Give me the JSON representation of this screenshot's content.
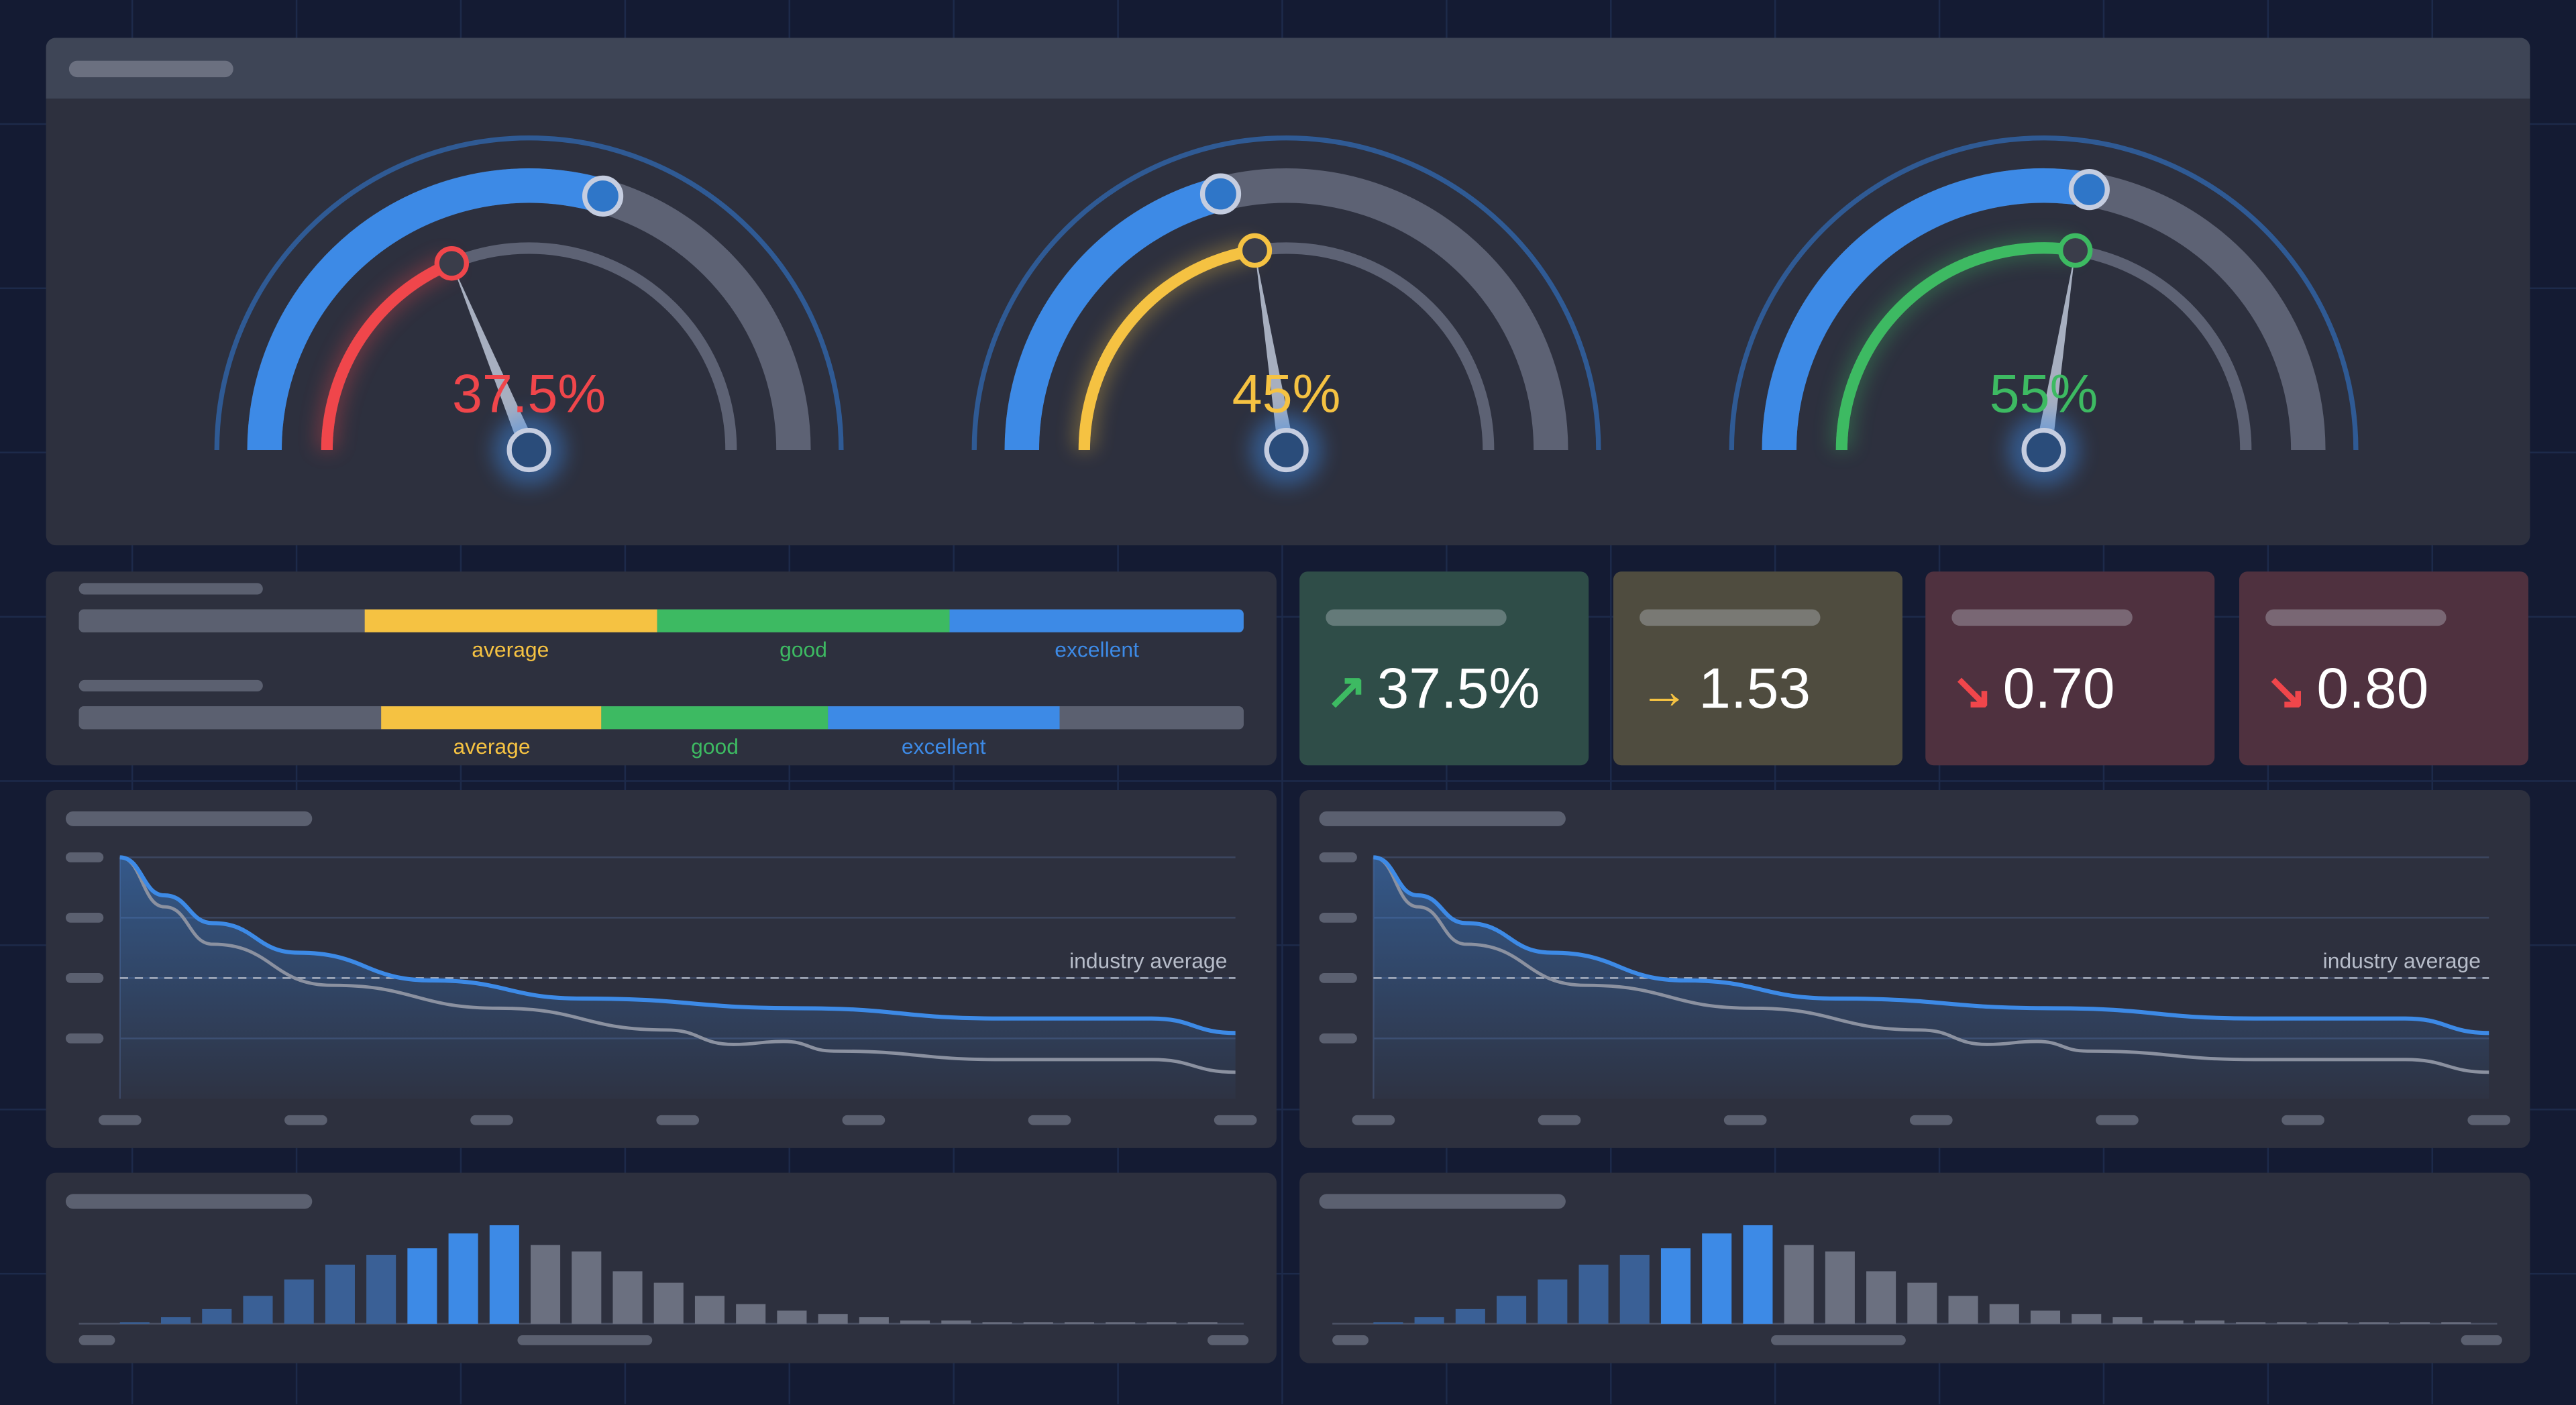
{
  "colors": {
    "blue": "#3d8ae6",
    "red": "#f0464b",
    "yellow": "#f5c242",
    "green": "#3dba62",
    "grey": "#5d6274",
    "ring": "#2f5a94"
  },
  "gauges": [
    {
      "value_label": "37.5%",
      "value": 0.375,
      "target": 0.59,
      "color": "#f0464b"
    },
    {
      "value_label": "45%",
      "value": 0.45,
      "target": 0.42,
      "color": "#f5c242"
    },
    {
      "value_label": "55%",
      "value": 0.55,
      "target": 0.555,
      "color": "#3dba62"
    }
  ],
  "rating_bars": [
    {
      "segments": [
        {
          "label": "",
          "from": 0,
          "to": 0.245,
          "color": "#5b6070"
        },
        {
          "label": "average",
          "from": 0.245,
          "to": 0.496,
          "color": "#f5c242"
        },
        {
          "label": "good",
          "from": 0.496,
          "to": 0.748,
          "color": "#3dba62"
        },
        {
          "label": "excellent",
          "from": 0.748,
          "to": 1,
          "color": "#3d8ae6"
        }
      ]
    },
    {
      "segments": [
        {
          "label": "",
          "from": 0,
          "to": 0.26,
          "color": "#5b6070"
        },
        {
          "label": "average",
          "from": 0.26,
          "to": 0.449,
          "color": "#f5c242"
        },
        {
          "label": "good",
          "from": 0.449,
          "to": 0.643,
          "color": "#3dba62"
        },
        {
          "label": "excellent",
          "from": 0.643,
          "to": 0.842,
          "color": "#3d8ae6"
        },
        {
          "label": "",
          "from": 0.842,
          "to": 1,
          "color": "#5b6070"
        }
      ]
    }
  ],
  "kpis": [
    {
      "arrow": "↗",
      "trend": "up",
      "value": "37.5%",
      "bg": "#2f4d48",
      "arrow_color": "#3dba62"
    },
    {
      "arrow": "→",
      "trend": "flat",
      "value": "1.53",
      "bg": "#4f4c3f",
      "arrow_color": "#f5c242"
    },
    {
      "arrow": "↘",
      "trend": "down",
      "value": "0.70",
      "bg": "#4f313f",
      "arrow_color": "#f0464b"
    },
    {
      "arrow": "↘",
      "trend": "down",
      "value": "0.80",
      "bg": "#4f313f",
      "arrow_color": "#f0464b"
    }
  ],
  "chart_data": [
    {
      "type": "line",
      "xlim": [
        0,
        6
      ],
      "ylim": [
        0,
        4
      ],
      "grid": true,
      "reference_line": {
        "y": 2.0,
        "label": "industry average"
      },
      "series": [
        {
          "color": "#3d8ae6",
          "x": [
            0,
            0.24,
            0.5,
            0.96,
            1.68,
            2.49,
            3.66,
            4.74,
            5.55,
            6
          ],
          "y": [
            4,
            3.37,
            2.91,
            2.42,
            1.96,
            1.66,
            1.5,
            1.33,
            1.33,
            1.09
          ]
        },
        {
          "color": "#8b91a0",
          "x": [
            0,
            0.24,
            0.5,
            1.14,
            2.04,
            2.94,
            3.3,
            3.57,
            3.84,
            4.74,
            5.55,
            6
          ],
          "y": [
            4,
            3.18,
            2.56,
            1.88,
            1.5,
            1.14,
            0.9,
            0.95,
            0.79,
            0.65,
            0.65,
            0.44
          ]
        }
      ]
    },
    {
      "type": "line",
      "xlim": [
        0,
        6
      ],
      "ylim": [
        0,
        4
      ],
      "grid": true,
      "reference_line": {
        "y": 2.0,
        "label": "industry average"
      },
      "series": [
        {
          "color": "#3d8ae6",
          "x": [
            0,
            0.24,
            0.5,
            0.96,
            1.68,
            2.49,
            3.66,
            4.74,
            5.55,
            6
          ],
          "y": [
            4,
            3.37,
            2.91,
            2.42,
            1.96,
            1.66,
            1.5,
            1.33,
            1.33,
            1.09
          ]
        },
        {
          "color": "#8b91a0",
          "x": [
            0,
            0.24,
            0.5,
            1.14,
            2.04,
            2.94,
            3.3,
            3.57,
            3.84,
            4.74,
            5.55,
            6
          ],
          "y": [
            4,
            3.18,
            2.56,
            1.88,
            1.5,
            1.14,
            0.9,
            0.95,
            0.79,
            0.65,
            0.65,
            0.44
          ]
        }
      ]
    },
    {
      "type": "bar",
      "values": [
        1,
        4,
        9,
        17,
        27,
        36,
        42,
        46,
        55,
        60,
        48,
        44,
        32,
        25,
        17,
        12,
        8,
        6,
        4,
        2,
        2,
        1,
        1,
        1,
        1,
        1,
        1
      ],
      "highlight": [
        7,
        8,
        9
      ],
      "ylim": [
        0,
        60
      ]
    },
    {
      "type": "bar",
      "values": [
        1,
        4,
        9,
        17,
        27,
        36,
        42,
        46,
        55,
        60,
        48,
        44,
        32,
        25,
        17,
        12,
        8,
        6,
        4,
        2,
        2,
        1,
        1,
        1,
        1,
        1,
        1
      ],
      "highlight": [
        7,
        8,
        9
      ],
      "ylim": [
        0,
        60
      ]
    }
  ]
}
